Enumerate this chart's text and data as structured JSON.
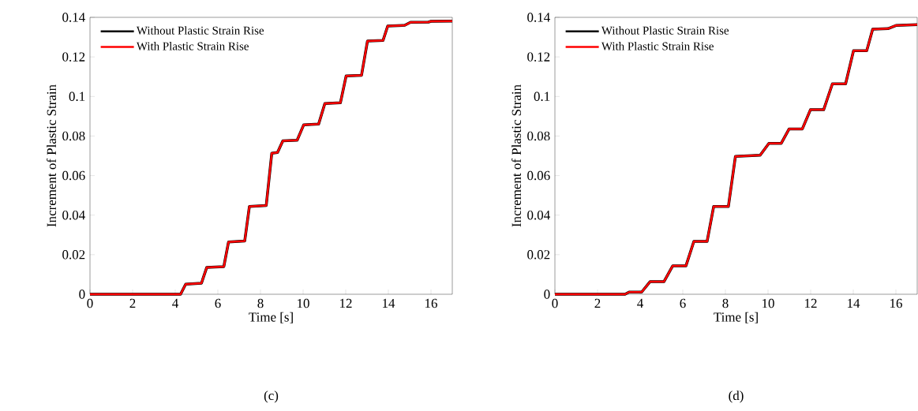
{
  "chart_data": [
    {
      "type": "line",
      "xlabel": "Time [s]",
      "ylabel": "Increment of Plastic Strain",
      "annotations": [
        "(c)"
      ],
      "xlim": [
        0,
        17
      ],
      "ylim": [
        0,
        0.14
      ],
      "xticks": [
        0,
        2,
        4,
        6,
        8,
        10,
        12,
        14,
        16
      ],
      "yticks": [
        0,
        0.02,
        0.04,
        0.06,
        0.08,
        0.1,
        0.12,
        0.14
      ],
      "grid": false,
      "legend": "top left",
      "marker": "none",
      "line_style": "solid",
      "x": [
        0,
        4.25,
        4.49,
        5.23,
        5.48,
        6.28,
        6.5,
        7.26,
        7.48,
        8.27,
        8.53,
        8.8,
        9.05,
        9.72,
        10.03,
        10.73,
        11.02,
        11.75,
        12.02,
        12.74,
        13.02,
        13.75,
        13.97,
        14.77,
        15.04,
        15.88,
        16,
        17
      ],
      "series": [
        {
          "name": "Without Plastic Strain Rise",
          "color": "#000000",
          "values": [
            0,
            0,
            0.0051,
            0.0056,
            0.0136,
            0.014,
            0.0264,
            0.0269,
            0.0444,
            0.0449,
            0.0713,
            0.0717,
            0.0776,
            0.0779,
            0.0857,
            0.0861,
            0.0964,
            0.0968,
            0.1104,
            0.1107,
            0.128,
            0.1283,
            0.1356,
            0.136,
            0.1375,
            0.1376,
            0.138,
            0.1381
          ]
        },
        {
          "name": "With Plastic Strain Rise",
          "color": "#ff0000",
          "values": [
            0,
            0,
            0.0051,
            0.0056,
            0.0136,
            0.014,
            0.0264,
            0.0269,
            0.0444,
            0.0449,
            0.0713,
            0.0717,
            0.0776,
            0.0779,
            0.0857,
            0.0861,
            0.0964,
            0.0968,
            0.1104,
            0.1107,
            0.128,
            0.1283,
            0.1356,
            0.136,
            0.1375,
            0.1376,
            0.138,
            0.1381
          ]
        }
      ]
    },
    {
      "type": "line",
      "xlabel": "Time [s]",
      "ylabel": "Increment of Plastic Strain",
      "annotations": [
        "(d)"
      ],
      "xlim": [
        0,
        17
      ],
      "ylim": [
        0,
        0.14
      ],
      "xticks": [
        0,
        2,
        4,
        6,
        8,
        10,
        12,
        14,
        16
      ],
      "yticks": [
        0,
        0.02,
        0.04,
        0.06,
        0.08,
        0.1,
        0.12,
        0.14
      ],
      "grid": false,
      "legend": "top left",
      "marker": "none",
      "line_style": "solid",
      "x": [
        0,
        3.29,
        3.48,
        4.07,
        4.47,
        5.12,
        5.53,
        6.15,
        6.52,
        7.14,
        7.45,
        8.14,
        8.47,
        9.63,
        10.04,
        10.62,
        10.99,
        11.61,
        11.99,
        12.61,
        13.02,
        13.64,
        14.01,
        14.63,
        14.91,
        15.63,
        16,
        17
      ],
      "series": [
        {
          "name": "Without Plastic Strain Rise",
          "color": "#000000",
          "values": [
            0,
            0,
            0.0011,
            0.0011,
            0.0064,
            0.0064,
            0.0144,
            0.0144,
            0.0267,
            0.0267,
            0.0444,
            0.0444,
            0.0697,
            0.0703,
            0.0763,
            0.0763,
            0.0836,
            0.0836,
            0.0933,
            0.0933,
            0.1064,
            0.1064,
            0.1231,
            0.1231,
            0.134,
            0.1343,
            0.1359,
            0.1363
          ]
        },
        {
          "name": "With Plastic Strain Rise",
          "color": "#ff0000",
          "values": [
            0,
            0,
            0.0011,
            0.0011,
            0.0064,
            0.0064,
            0.0144,
            0.0144,
            0.0267,
            0.0267,
            0.0444,
            0.0444,
            0.0697,
            0.0703,
            0.0763,
            0.0763,
            0.0836,
            0.0836,
            0.0933,
            0.0933,
            0.1064,
            0.1064,
            0.1231,
            0.1231,
            0.134,
            0.1343,
            0.1359,
            0.1363
          ]
        }
      ]
    }
  ]
}
